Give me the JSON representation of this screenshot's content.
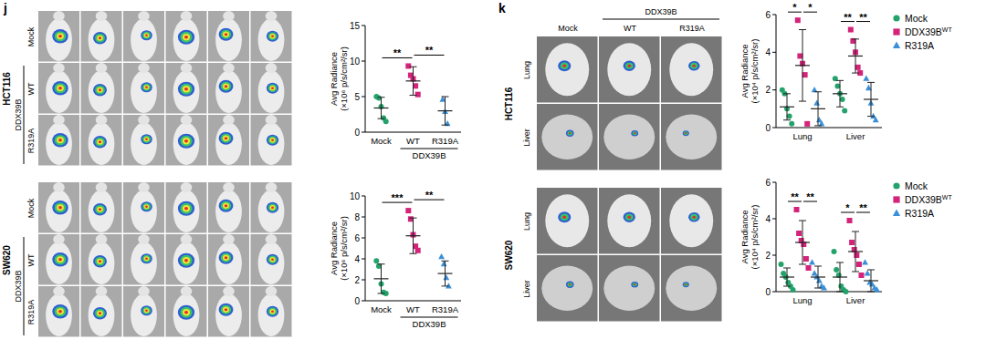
{
  "figure": {
    "panel_j": {
      "label": "j",
      "cell_lines": [
        "HCT116",
        "SW620"
      ],
      "row_labels": [
        "Mock",
        "WT",
        "R319A"
      ],
      "row_group_label": "DDX39B",
      "mice_per_row": 6
    },
    "panel_k": {
      "label": "k",
      "cell_lines": [
        "HCT116",
        "SW620"
      ],
      "column_labels": [
        "Mock",
        "WT",
        "R319A"
      ],
      "column_group_label": "DDX39B",
      "organ_labels": [
        "Lung",
        "Liver"
      ]
    }
  },
  "chart_data": [
    {
      "type": "scatter",
      "y_label": [
        "Avg Radiance",
        "(×10⁶ p/s/cm²/sr)"
      ],
      "x_group_label": "DDX39B",
      "ylim": [
        0,
        15
      ],
      "yticks": [
        0,
        5,
        10,
        15
      ],
      "series": [
        {
          "name": "Mock",
          "color": "#23a36b",
          "marker": "circle",
          "values": [
            5.0,
            4.8,
            3.6,
            2.0,
            1.5
          ],
          "mean": 3.4,
          "error": 1.5
        },
        {
          "name": "WT",
          "color": "#d4237a",
          "marker": "square",
          "values": [
            9.3,
            8.0,
            7.5,
            6.5,
            5.3
          ],
          "mean": 7.2,
          "error": 2.0
        },
        {
          "name": "R319A",
          "color": "#3a8fd6",
          "marker": "triangle",
          "values": [
            4.6,
            2.9,
            1.2
          ],
          "mean": 3.0,
          "error": 2.0
        }
      ],
      "annotations": [
        {
          "text": "**",
          "from": 0,
          "to": 1
        },
        {
          "text": "**",
          "from": 1,
          "to": 2
        }
      ]
    },
    {
      "type": "scatter",
      "y_label": [
        "Avg Radiance",
        "(×10⁶ p/s/cm²/sr)"
      ],
      "x_group_label": "DDX39B",
      "ylim": [
        0,
        10
      ],
      "yticks": [
        0,
        2,
        4,
        6,
        8,
        10
      ],
      "series": [
        {
          "name": "Mock",
          "color": "#23a36b",
          "marker": "circle",
          "values": [
            3.8,
            3.3,
            1.6,
            0.8,
            0.7
          ],
          "mean": 2.1,
          "error": 1.4
        },
        {
          "name": "WT",
          "color": "#d4237a",
          "marker": "square",
          "values": [
            8.6,
            7.8,
            6.3,
            5.2,
            4.8
          ],
          "mean": 6.2,
          "error": 1.7
        },
        {
          "name": "R319A",
          "color": "#3a8fd6",
          "marker": "triangle",
          "values": [
            4.2,
            3.5,
            2.2,
            1.4
          ],
          "mean": 2.6,
          "error": 1.2
        }
      ],
      "annotations": [
        {
          "text": "***",
          "from": 0,
          "to": 1
        },
        {
          "text": "**",
          "from": 1,
          "to": 2
        }
      ]
    },
    {
      "type": "scatter",
      "y_label": [
        "Avg Radiance",
        "(×10⁴ p/s/cm²/sr)"
      ],
      "categories": [
        "Lung",
        "Liver"
      ],
      "ylim": [
        0,
        6
      ],
      "yticks": [
        0,
        2,
        4,
        6
      ],
      "legend": "right",
      "series": [
        {
          "name": "Mock",
          "color": "#23a36b",
          "marker": "circle",
          "values": [
            [
              2.0,
              1.8,
              1.0,
              0.6,
              0.2
            ],
            [
              2.6,
              2.2,
              1.8,
              1.5,
              0.9
            ]
          ],
          "mean": [
            1.1,
            1.8
          ],
          "error": [
            0.7,
            0.7
          ]
        },
        {
          "name": "DDX39B",
          "name_superscript": "WT",
          "color": "#d4237a",
          "marker": "square",
          "values": [
            [
              5.7,
              3.8,
              3.4,
              2.8,
              0.2
            ],
            [
              5.2,
              4.6,
              4.0,
              3.2,
              2.9
            ]
          ],
          "mean": [
            3.3,
            3.8
          ],
          "error": [
            1.9,
            0.9
          ]
        },
        {
          "name": "R319A",
          "color": "#3a8fd6",
          "marker": "triangle",
          "values": [
            [
              2.0,
              1.3,
              0.4,
              0.2
            ],
            [
              2.6,
              2.1,
              1.3,
              0.6,
              0.4
            ]
          ],
          "mean": [
            1.0,
            1.5
          ],
          "error": [
            0.9,
            0.9
          ]
        }
      ],
      "annotations": [
        {
          "text": "*",
          "category": 0,
          "from": 0,
          "to": 1
        },
        {
          "text": "*",
          "category": 0,
          "from": 1,
          "to": 2
        },
        {
          "text": "**",
          "category": 1,
          "from": 0,
          "to": 1
        },
        {
          "text": "**",
          "category": 1,
          "from": 1,
          "to": 2
        }
      ]
    },
    {
      "type": "scatter",
      "y_label": [
        "Avg Radiance",
        "(×10⁴ p/s/cm²/sr)"
      ],
      "categories": [
        "Lung",
        "Liver"
      ],
      "ylim": [
        0,
        6
      ],
      "yticks": [
        0,
        2,
        4,
        6
      ],
      "legend": "right",
      "series": [
        {
          "name": "Mock",
          "color": "#23a36b",
          "marker": "circle",
          "values": [
            [
              1.5,
              1.0,
              0.8,
              0.5,
              0.3,
              0.1
            ],
            [
              2.2,
              1.2,
              0.9,
              0.3,
              0.1,
              0.0
            ]
          ],
          "mean": [
            0.8,
            0.8
          ],
          "error": [
            0.5,
            0.8
          ]
        },
        {
          "name": "DDX39B",
          "name_superscript": "WT",
          "color": "#d4237a",
          "marker": "square",
          "values": [
            [
              4.5,
              3.2,
              2.8,
              2.6,
              1.8,
              1.3
            ],
            [
              3.9,
              2.7,
              2.3,
              2.0,
              1.5,
              0.9
            ]
          ],
          "mean": [
            2.7,
            2.2
          ],
          "error": [
            1.2,
            1.1
          ]
        },
        {
          "name": "R319A",
          "color": "#3a8fd6",
          "marker": "triangle",
          "values": [
            [
              1.6,
              1.0,
              0.8,
              0.6,
              0.3,
              0.2
            ],
            [
              1.6,
              1.0,
              0.5,
              0.4,
              0.2,
              0.1
            ]
          ],
          "mean": [
            0.8,
            0.6
          ],
          "error": [
            0.6,
            0.6
          ]
        }
      ],
      "annotations": [
        {
          "text": "**",
          "category": 0,
          "from": 0,
          "to": 1
        },
        {
          "text": "**",
          "category": 0,
          "from": 1,
          "to": 2
        },
        {
          "text": "*",
          "category": 1,
          "from": 0,
          "to": 1
        },
        {
          "text": "**",
          "category": 1,
          "from": 1,
          "to": 2
        }
      ]
    }
  ]
}
